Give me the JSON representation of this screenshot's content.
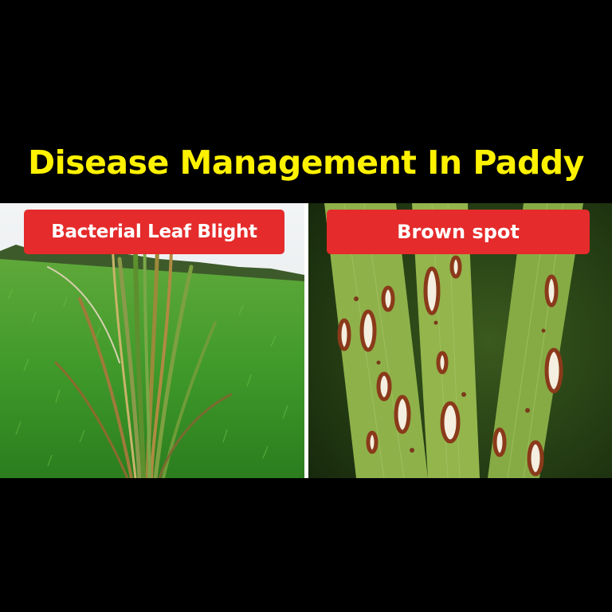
{
  "title": "Disease Management In Paddy",
  "panels": [
    {
      "label": "Bacterial Leaf Blight"
    },
    {
      "label": "Brown spot"
    }
  ],
  "colors": {
    "background": "#000000",
    "title": "#fff200",
    "label_bg": "#e52b2b",
    "label_text": "#ffffff"
  }
}
